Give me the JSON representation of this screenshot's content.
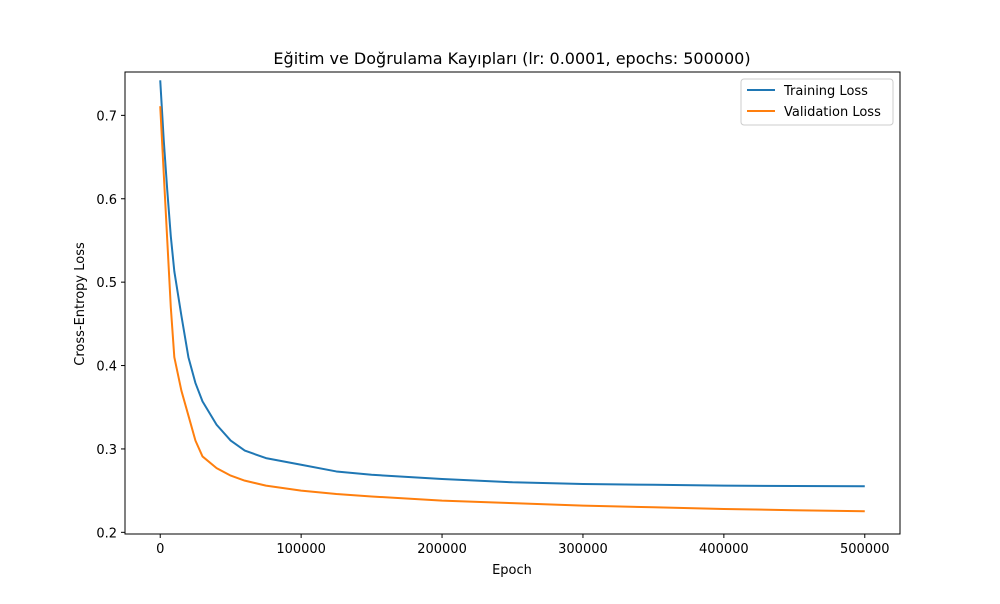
{
  "chart_data": {
    "type": "line",
    "title": "Eğitim ve Doğrulama Kayıpları (lr: 0.0001, epochs: 500000)",
    "xlabel": "Epoch",
    "ylabel": "Cross-Entropy Loss",
    "xlim": [
      -25000,
      525000
    ],
    "ylim": [
      0.198,
      0.752
    ],
    "xticks": [
      0,
      100000,
      200000,
      300000,
      400000,
      500000
    ],
    "xtick_labels": [
      "0",
      "100000",
      "200000",
      "300000",
      "400000",
      "500000"
    ],
    "yticks": [
      0.2,
      0.3,
      0.4,
      0.5,
      0.6,
      0.7
    ],
    "ytick_labels": [
      "0.2",
      "0.3",
      "0.4",
      "0.5",
      "0.6",
      "0.7"
    ],
    "grid": false,
    "legend_position": "top-right",
    "x": [
      0,
      2500,
      5000,
      7500,
      10000,
      15000,
      20000,
      25000,
      30000,
      40000,
      50000,
      60000,
      75000,
      100000,
      125000,
      150000,
      200000,
      250000,
      300000,
      350000,
      400000,
      450000,
      500000
    ],
    "series": [
      {
        "name": "Training Loss",
        "color": "#1f77b4",
        "values": [
          0.742,
          0.67,
          0.61,
          0.555,
          0.513,
          0.46,
          0.41,
          0.379,
          0.357,
          0.329,
          0.31,
          0.298,
          0.289,
          0.281,
          0.273,
          0.269,
          0.264,
          0.26,
          0.258,
          0.257,
          0.256,
          0.2555,
          0.2553
        ]
      },
      {
        "name": "Validation Loss",
        "color": "#ff7f0e",
        "values": [
          0.711,
          0.63,
          0.55,
          0.47,
          0.41,
          0.37,
          0.34,
          0.31,
          0.291,
          0.277,
          0.268,
          0.262,
          0.256,
          0.25,
          0.246,
          0.243,
          0.238,
          0.235,
          0.232,
          0.23,
          0.228,
          0.2265,
          0.2253
        ]
      }
    ]
  }
}
